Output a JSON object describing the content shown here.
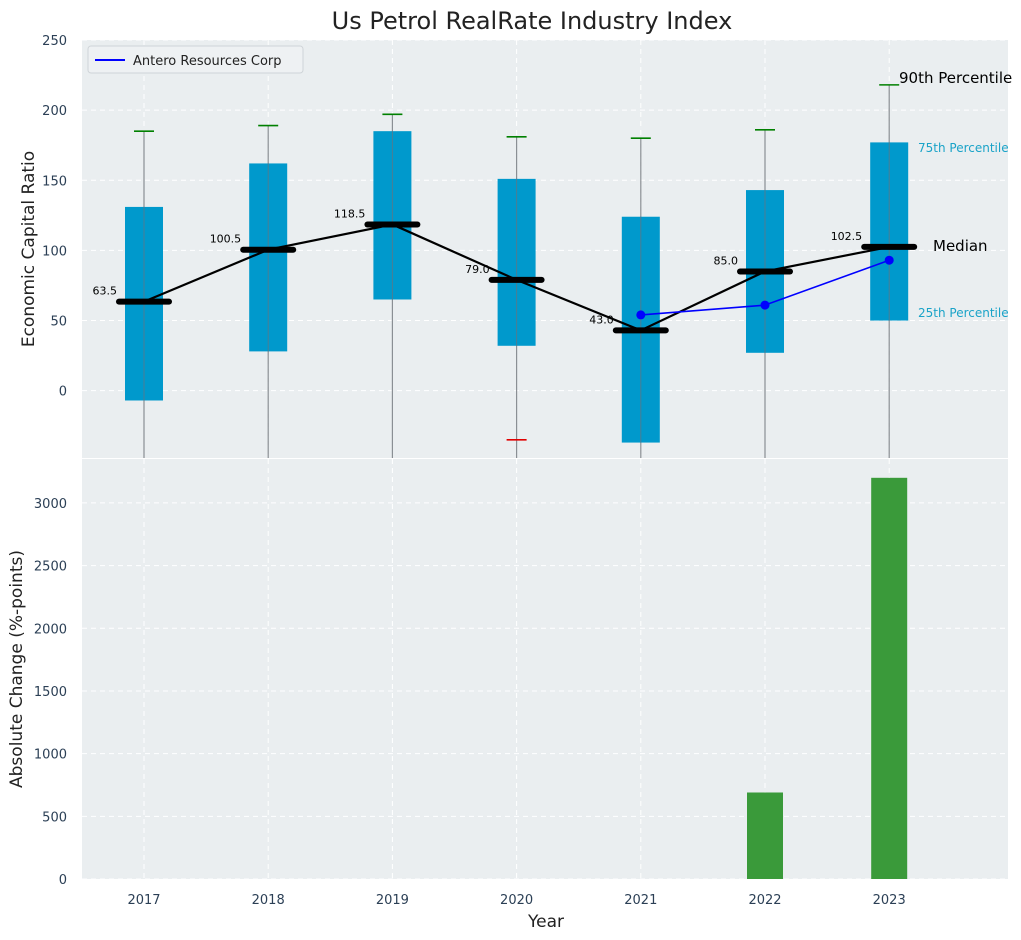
{
  "chart_data": {
    "type": "box",
    "title": "Us Petrol RealRate Industry Index",
    "xlabel": "Year",
    "categories": [
      "2017",
      "2018",
      "2019",
      "2020",
      "2021",
      "2022",
      "2023"
    ],
    "top_panel": {
      "ylabel": "Economic Capital Ratio",
      "ylim": [
        -48,
        250
      ],
      "yticks": [
        0,
        50,
        100,
        150,
        200,
        250
      ],
      "boxes": [
        {
          "year": "2017",
          "q1": -7,
          "q3": 131,
          "median": 63.5,
          "p90": 185,
          "p10": null
        },
        {
          "year": "2018",
          "q1": 28,
          "q3": 162,
          "median": 100.5,
          "p90": 189,
          "p10": null
        },
        {
          "year": "2019",
          "q1": 65,
          "q3": 185,
          "median": 118.5,
          "p90": 197,
          "p10": null
        },
        {
          "year": "2020",
          "q1": 32,
          "q3": 151,
          "median": 79.0,
          "p90": 181,
          "p10": -35
        },
        {
          "year": "2021",
          "q1": -37,
          "q3": 124,
          "median": 43.0,
          "p90": 180,
          "p10": null
        },
        {
          "year": "2022",
          "q1": 27,
          "q3": 143,
          "median": 85.0,
          "p90": 186,
          "p10": null
        },
        {
          "year": "2023",
          "q1": 50,
          "q3": 177,
          "median": 102.5,
          "p90": 218,
          "p10": null
        }
      ],
      "median_labels": [
        "63.5",
        "100.5",
        "118.5",
        "79.0",
        "43.0",
        "85.0",
        "102.5"
      ],
      "company_series": {
        "name": "Antero Resources Corp",
        "x": [
          "2021",
          "2022",
          "2023"
        ],
        "values": [
          54,
          61,
          93
        ]
      },
      "annotations": {
        "p90": "90th Percentile",
        "p75": "75th Percentile",
        "median": "Median",
        "p25": "25th Percentile"
      },
      "legend": {
        "placement": "top-left"
      }
    },
    "bottom_panel": {
      "ylabel": "Absolute Change (%-points)",
      "ylim": [
        0,
        3350
      ],
      "yticks": [
        0,
        500,
        1000,
        1500,
        2000,
        2500,
        3000
      ],
      "type": "bar",
      "values": [
        null,
        null,
        null,
        null,
        null,
        690,
        3200
      ]
    },
    "grid": true,
    "colors": {
      "box": "#0099cc",
      "median": "#000000",
      "company": "#0000ff",
      "bar": "#3a9a3a",
      "whisker_cap_high": "#008000",
      "whisker_cap_low": "#e00000",
      "panel_bg": "#eaeef0",
      "annotation_percentile": "#1aa3c8"
    }
  }
}
